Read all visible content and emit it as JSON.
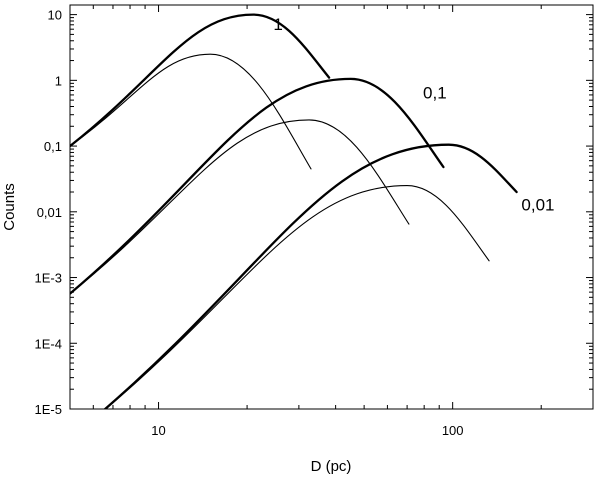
{
  "chart_data": {
    "type": "line",
    "xlabel": "D (pc)",
    "ylabel": "Counts",
    "xscale": "log",
    "yscale": "log",
    "xlim": [
      5,
      300
    ],
    "ylim": [
      1e-05,
      14
    ],
    "x_ticks": [
      {
        "value": 10,
        "label": "10"
      },
      {
        "value": 100,
        "label": "100"
      }
    ],
    "y_ticks": [
      {
        "value": 10,
        "label": "10"
      },
      {
        "value": 1,
        "label": "1"
      },
      {
        "value": 0.1,
        "label": "0,1"
      },
      {
        "value": 0.01,
        "label": "0,01"
      },
      {
        "value": 0.001,
        "label": "1E-3"
      },
      {
        "value": 0.0001,
        "label": "1E-4"
      },
      {
        "value": 1e-05,
        "label": "1E-5"
      }
    ],
    "grid": false,
    "series": [
      {
        "style": "thick",
        "color": "#000000",
        "x": [
          5,
          21,
          38
        ],
        "y": [
          0.1,
          10,
          1.1
        ]
      },
      {
        "style": "thin",
        "color": "#000000",
        "x": [
          5,
          15,
          33
        ],
        "y": [
          0.1,
          2.5,
          0.045
        ]
      },
      {
        "style": "thick",
        "color": "#000000",
        "x": [
          5,
          45,
          93
        ],
        "y": [
          0.00057,
          1.05,
          0.048
        ]
      },
      {
        "style": "thin",
        "color": "#000000",
        "x": [
          5,
          32.5,
          71
        ],
        "y": [
          0.00057,
          0.25,
          0.0065
        ]
      },
      {
        "style": "thick",
        "color": "#000000",
        "x": [
          6,
          97,
          165
        ],
        "y": [
          7e-06,
          0.105,
          0.02
        ]
      },
      {
        "style": "thin",
        "color": "#000000",
        "x": [
          6,
          70,
          133
        ],
        "y": [
          7e-06,
          0.025,
          0.0018
        ]
      }
    ],
    "annotations": [
      {
        "text": "1",
        "x": 25.5,
        "y": 5.8
      },
      {
        "text": "0,1",
        "x": 87,
        "y": 0.53
      },
      {
        "text": "0,01",
        "x": 195,
        "y": 0.0105
      }
    ],
    "highlight_color": "#e02020"
  }
}
